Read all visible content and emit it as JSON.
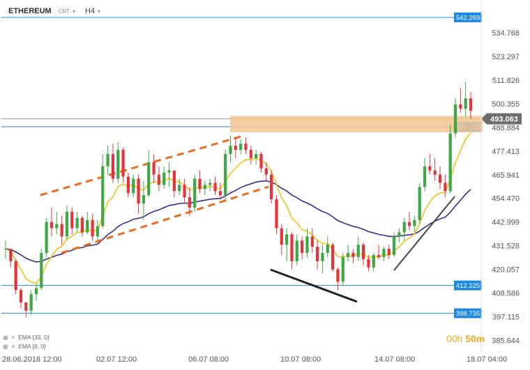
{
  "header": {
    "symbol": "ETHEREUM",
    "chart_type": "CRT",
    "timeframe": "H4"
  },
  "indicators": [
    {
      "label": "EMA [33, 0]",
      "color": "#3a2a8c"
    },
    {
      "label": "EMA [8, 0]",
      "color": "#f2c21b"
    }
  ],
  "countdown": {
    "hours": "00h",
    "minutes": "50m"
  },
  "chart_data": {
    "type": "candlestick",
    "title": "",
    "ylim": [
      380,
      548
    ],
    "x_ticks": [
      "28.06.2018  12:00",
      "02.07  12:00",
      "06.07  08:00",
      "10.07  08:00",
      "14.07  08:00",
      "18.07  04:00"
    ],
    "y_ticks": [
      534.768,
      523.297,
      511.826,
      500.355,
      488.884,
      477.413,
      465.941,
      454.47,
      442.999,
      431.528,
      420.057,
      408.586,
      397.115,
      385.644
    ],
    "horizontal_levels": [
      {
        "value": 542.269,
        "label": "542.269",
        "color": "#1e88e5"
      },
      {
        "value": 489.212,
        "label": "489.212",
        "color": "#1e88e5"
      },
      {
        "value": 412.225,
        "label": "412.225",
        "color": "#1e88e5"
      },
      {
        "value": 398.735,
        "label": "398.735",
        "color": "#1e88e5"
      }
    ],
    "current_price": {
      "value": 493.063,
      "label": "493.063",
      "color": "#6d6d6d"
    },
    "zone": {
      "from": 486.5,
      "to": 494.5,
      "color": "#f5c593"
    },
    "colors": {
      "up": "#3da940",
      "down": "#e2343b",
      "ema_fast": "#f2c21b",
      "ema_slow": "#3a2a8c",
      "trend": "#ec6b1e",
      "support": "#222222"
    },
    "candles": [
      [
        430,
        434,
        425,
        430
      ],
      [
        430,
        430,
        421,
        424
      ],
      [
        424,
        425,
        408,
        410
      ],
      [
        410,
        411,
        401,
        404
      ],
      [
        404,
        404,
        397,
        400
      ],
      [
        400,
        410,
        398,
        408
      ],
      [
        408,
        413,
        405,
        411
      ],
      [
        411,
        430,
        410,
        428
      ],
      [
        428,
        445,
        426,
        443
      ],
      [
        443,
        450,
        436,
        440
      ],
      [
        440,
        448,
        437,
        442
      ],
      [
        442,
        446,
        432,
        436
      ],
      [
        436,
        451,
        434,
        448
      ],
      [
        448,
        450,
        437,
        440
      ],
      [
        440,
        448,
        438,
        445
      ],
      [
        445,
        446,
        436,
        438
      ],
      [
        438,
        448,
        437,
        444
      ],
      [
        444,
        447,
        434,
        436
      ],
      [
        436,
        444,
        434,
        441
      ],
      [
        441,
        476,
        440,
        470
      ],
      [
        470,
        480,
        466,
        476
      ],
      [
        476,
        481,
        462,
        464
      ],
      [
        464,
        482,
        462,
        478
      ],
      [
        478,
        479,
        462,
        465
      ],
      [
        465,
        467,
        455,
        457
      ],
      [
        457,
        466,
        455,
        464
      ],
      [
        464,
        466,
        447,
        452
      ],
      [
        452,
        463,
        444,
        456
      ],
      [
        456,
        478,
        455,
        472
      ],
      [
        472,
        476,
        462,
        466
      ],
      [
        466,
        470,
        458,
        461
      ],
      [
        461,
        470,
        459,
        467
      ],
      [
        467,
        472,
        460,
        468
      ],
      [
        468,
        468,
        455,
        458
      ],
      [
        458,
        464,
        456,
        461
      ],
      [
        461,
        464,
        452,
        455
      ],
      [
        455,
        460,
        446,
        450
      ],
      [
        450,
        466,
        448,
        464
      ],
      [
        464,
        468,
        457,
        459
      ],
      [
        459,
        463,
        456,
        461
      ],
      [
        461,
        464,
        458,
        462
      ],
      [
        462,
        465,
        456,
        458
      ],
      [
        458,
        462,
        454,
        456
      ],
      [
        456,
        478,
        454,
        476
      ],
      [
        476,
        485,
        472,
        480
      ],
      [
        480,
        484,
        474,
        478
      ],
      [
        478,
        483,
        476,
        481
      ],
      [
        481,
        484,
        476,
        478
      ],
      [
        478,
        480,
        471,
        474
      ],
      [
        474,
        478,
        471,
        476
      ],
      [
        476,
        477,
        467,
        469
      ],
      [
        469,
        472,
        463,
        466
      ],
      [
        466,
        468,
        452,
        454
      ],
      [
        454,
        456,
        437,
        440
      ],
      [
        440,
        442,
        427,
        432
      ],
      [
        432,
        440,
        424,
        437
      ],
      [
        437,
        438,
        420,
        424
      ],
      [
        424,
        437,
        422,
        434
      ],
      [
        434,
        436,
        425,
        428
      ],
      [
        428,
        440,
        426,
        436
      ],
      [
        436,
        440,
        428,
        431
      ],
      [
        431,
        434,
        420,
        424
      ],
      [
        424,
        432,
        418,
        428
      ],
      [
        428,
        436,
        426,
        432
      ],
      [
        432,
        433,
        419,
        420
      ],
      [
        420,
        421,
        410,
        414
      ],
      [
        414,
        428,
        412,
        426
      ],
      [
        426,
        432,
        424,
        428
      ],
      [
        428,
        430,
        423,
        426
      ],
      [
        426,
        436,
        424,
        432
      ],
      [
        432,
        433,
        422,
        425
      ],
      [
        425,
        427,
        419,
        421
      ],
      [
        421,
        428,
        419,
        427
      ],
      [
        427,
        432,
        425,
        426
      ],
      [
        426,
        431,
        424,
        430
      ],
      [
        430,
        432,
        425,
        427
      ],
      [
        427,
        438,
        426,
        436
      ],
      [
        436,
        440,
        433,
        438
      ],
      [
        438,
        445,
        434,
        443
      ],
      [
        443,
        448,
        439,
        441
      ],
      [
        441,
        446,
        438,
        444
      ],
      [
        444,
        462,
        442,
        460
      ],
      [
        460,
        474,
        458,
        470
      ],
      [
        470,
        476,
        466,
        468
      ],
      [
        468,
        474,
        463,
        466
      ],
      [
        466,
        470,
        459,
        462
      ],
      [
        462,
        466,
        455,
        458
      ],
      [
        458,
        490,
        457,
        486
      ],
      [
        486,
        503,
        484,
        500
      ],
      [
        500,
        508,
        496,
        498
      ],
      [
        498,
        511,
        494,
        503
      ],
      [
        503,
        506,
        493,
        497
      ]
    ]
  }
}
